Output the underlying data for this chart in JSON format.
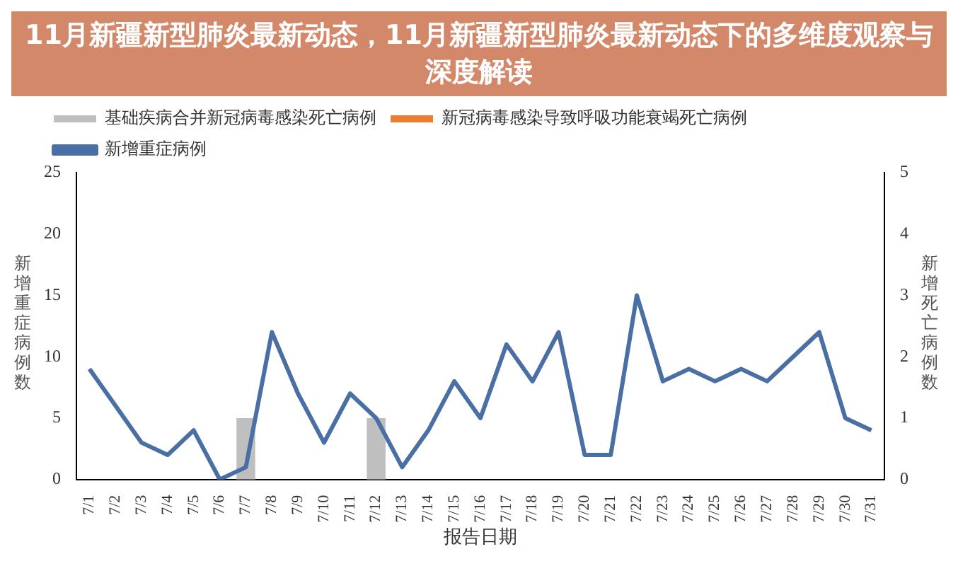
{
  "chart_data": {
    "type": "bar",
    "title": "11月新疆新型肺炎最新动态，11月新疆新型肺炎最新动态下的多维度观察与深度解读",
    "xlabel": "报告日期",
    "ylabel": "新增重症病例数",
    "y2label": "新增死亡病例数",
    "categories": [
      "7/1",
      "7/2",
      "7/3",
      "7/4",
      "7/5",
      "7/6",
      "7/7",
      "7/8",
      "7/9",
      "7/10",
      "7/11",
      "7/12",
      "7/13",
      "7/14",
      "7/15",
      "7/16",
      "7/17",
      "7/18",
      "7/19",
      "7/20",
      "7/21",
      "7/22",
      "7/23",
      "7/24",
      "7/25",
      "7/26",
      "7/27",
      "7/28",
      "7/29",
      "7/30",
      "7/31"
    ],
    "series": [
      {
        "name": "基础疾病合并新冠病毒感染死亡病例",
        "axis": "y2",
        "color": "#bfbfbf",
        "values": [
          null,
          null,
          null,
          null,
          null,
          null,
          1,
          null,
          null,
          null,
          null,
          1,
          null,
          null,
          null,
          null,
          null,
          null,
          null,
          null,
          null,
          null,
          null,
          null,
          null,
          null,
          null,
          null,
          null,
          null,
          null
        ]
      },
      {
        "name": "新冠病毒感染导致呼吸功能衰竭死亡病例",
        "axis": "y2",
        "color": "#ed7d31",
        "values": [
          null,
          null,
          null,
          null,
          null,
          null,
          null,
          null,
          null,
          null,
          null,
          null,
          null,
          null,
          null,
          null,
          null,
          null,
          null,
          null,
          null,
          null,
          null,
          null,
          null,
          null,
          null,
          null,
          null,
          null,
          null
        ]
      },
      {
        "name": "新增重症病例",
        "type": "line",
        "axis": "y",
        "color": "#4a6fa5",
        "values": [
          9,
          6,
          3,
          2,
          4,
          0,
          1,
          12,
          7,
          3,
          7,
          5,
          1,
          4,
          8,
          5,
          11,
          8,
          12,
          2,
          2,
          15,
          8,
          9,
          8,
          9,
          8,
          10,
          12,
          5,
          4
        ]
      }
    ],
    "ylim": [
      0,
      25
    ],
    "yticks": [
      0,
      5,
      10,
      15,
      20,
      25
    ],
    "y2lim": [
      0,
      5
    ],
    "y2ticks": [
      0,
      1,
      2,
      3,
      4,
      5
    ],
    "grid": false,
    "legend": "top left",
    "marker": "none",
    "line_style": "solid",
    "stacked": true
  }
}
